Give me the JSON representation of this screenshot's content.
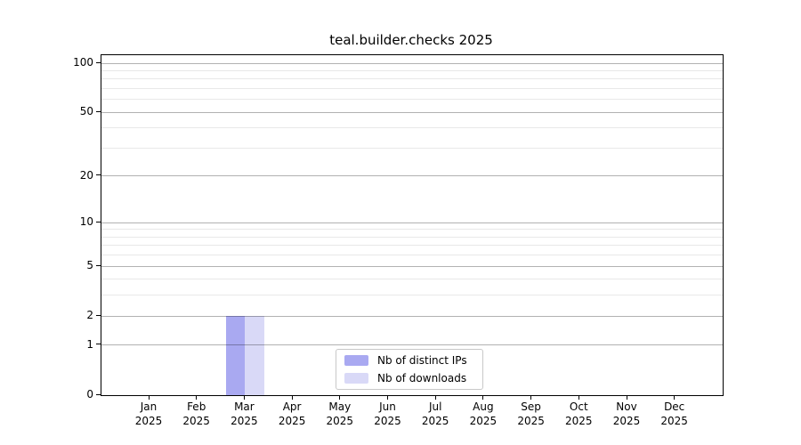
{
  "title": "teal.builder.checks 2025",
  "chart_data": {
    "type": "bar",
    "title": "teal.builder.checks 2025",
    "x_months": [
      "Jan",
      "Feb",
      "Mar",
      "Apr",
      "May",
      "Jun",
      "Jul",
      "Aug",
      "Sep",
      "Oct",
      "Nov",
      "Dec"
    ],
    "x_year": "2025",
    "categories": [
      "Jan 2025",
      "Feb 2025",
      "Mar 2025",
      "Apr 2025",
      "May 2025",
      "Jun 2025",
      "Jul 2025",
      "Aug 2025",
      "Sep 2025",
      "Oct 2025",
      "Nov 2025",
      "Dec 2025"
    ],
    "series": [
      {
        "name": "Nb of distinct IPs",
        "color": "#a9a9f1",
        "values": [
          0,
          0,
          2,
          0,
          0,
          0,
          0,
          0,
          0,
          0,
          0,
          0
        ]
      },
      {
        "name": "Nb of downloads",
        "color": "#d9d9f7",
        "values": [
          0,
          0,
          2,
          0,
          0,
          0,
          0,
          0,
          0,
          0,
          0,
          0
        ]
      }
    ],
    "xlabel": "",
    "ylabel": "",
    "yscale": "log1p",
    "ylim": [
      0,
      112
    ],
    "yticks": [
      0,
      1,
      2,
      5,
      10,
      20,
      50,
      100
    ],
    "minor_yticks": [
      3,
      4,
      6,
      7,
      8,
      9,
      30,
      40,
      60,
      70,
      80,
      90
    ],
    "grid": true,
    "legend_position": "lower center"
  },
  "colors": {
    "bar_distinct_ips": "#a9a9f1",
    "bar_downloads": "#d9d9f7",
    "axis": "#000000",
    "major_gridline_rgba": "rgba(0,0,0,0.30)",
    "minor_gridline_rgba": "rgba(0,0,0,0.09)",
    "legend_border": "#c8c8c8",
    "background": "#ffffff"
  }
}
